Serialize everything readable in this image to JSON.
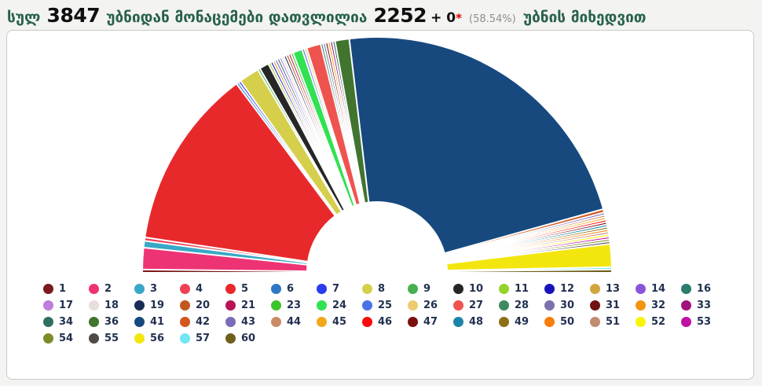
{
  "header": {
    "word_total": "სულ",
    "total_precincts": "3847",
    "phrase_counted": "უბნიდან მონაცემები დათვლილია",
    "counted_precincts": "2252",
    "plus_value": "+ 0",
    "asterisk": "*",
    "percent": "(58.54%)",
    "phrase_by_precinct": "უბნის მიხედვით"
  },
  "colors": {
    "header_green": "#27614a",
    "asterisk_red": "#dd0000",
    "percent_gray": "#8f8f8f",
    "panel_border": "#c9c9c9",
    "page_background": "#f3f3f1",
    "separator_white": "#ffffff",
    "legend_label": "#223050"
  },
  "chart_data": {
    "type": "pie",
    "shape": "semicircle-donut",
    "start_angle_deg": 180,
    "end_angle_deg": 0,
    "inner_radius_ratio": 0.3,
    "legend_position": "bottom",
    "unit": "percent of semicircle (estimated from arc lengths)",
    "segments": [
      {
        "label": "1",
        "value": 0.15,
        "color": "#7A1A1A"
      },
      {
        "label": "2",
        "value": 3.2,
        "color": "#EE3375"
      },
      {
        "label": "3",
        "value": 1.0,
        "color": "#38A8C6"
      },
      {
        "label": "4",
        "value": 0.5,
        "color": "#EF4155"
      },
      {
        "label": "5",
        "value": 26.7,
        "color": "#E8292C"
      },
      {
        "label": "6",
        "value": 0.2,
        "color": "#2E78C7"
      },
      {
        "label": "7",
        "value": 0.25,
        "color": "#2B3BF0"
      },
      {
        "label": "8",
        "value": 3.0,
        "color": "#D6CF4B"
      },
      {
        "label": "9",
        "value": 0.3,
        "color": "#47B152"
      },
      {
        "label": "10",
        "value": 1.4,
        "color": "#262626"
      },
      {
        "label": "11",
        "value": 0.15,
        "color": "#94D32C"
      },
      {
        "label": "12",
        "value": 0.3,
        "color": "#1A12B9"
      },
      {
        "label": "13",
        "value": 0.1,
        "color": "#D2A63F"
      },
      {
        "label": "14",
        "value": 0.1,
        "color": "#8C55D9"
      },
      {
        "label": "16",
        "value": 0.1,
        "color": "#2C7D6B"
      },
      {
        "label": "17",
        "value": 0.1,
        "color": "#BD7EDC"
      },
      {
        "label": "18",
        "value": 0.1,
        "color": "#E8DEDC"
      },
      {
        "label": "19",
        "value": 0.3,
        "color": "#1A2C55"
      },
      {
        "label": "20",
        "value": 0.1,
        "color": "#C2571F"
      },
      {
        "label": "21",
        "value": 0.3,
        "color": "#B81355"
      },
      {
        "label": "23",
        "value": 0.2,
        "color": "#3CC42C"
      },
      {
        "label": "24",
        "value": 1.4,
        "color": "#31E151"
      },
      {
        "label": "25",
        "value": 0.3,
        "color": "#4A72E8"
      },
      {
        "label": "26",
        "value": 0.1,
        "color": "#EECB70"
      },
      {
        "label": "27",
        "value": 2.1,
        "color": "#EF5350"
      },
      {
        "label": "28",
        "value": 0.15,
        "color": "#3E8A60"
      },
      {
        "label": "30",
        "value": 0.1,
        "color": "#7B72AD"
      },
      {
        "label": "31",
        "value": 0.1,
        "color": "#701312"
      },
      {
        "label": "32",
        "value": 0.1,
        "color": "#F0960F"
      },
      {
        "label": "33",
        "value": 0.1,
        "color": "#A2127F"
      },
      {
        "label": "34",
        "value": 0.1,
        "color": "#2F6F63"
      },
      {
        "label": "36",
        "value": 2.1,
        "color": "#41742F"
      },
      {
        "label": "41",
        "value": 48.5,
        "color": "#17497F"
      },
      {
        "label": "42",
        "value": 0.5,
        "color": "#D2571C"
      },
      {
        "label": "43",
        "value": 0.1,
        "color": "#7D6BB8"
      },
      {
        "label": "44",
        "value": 0.3,
        "color": "#C98C66"
      },
      {
        "label": "45",
        "value": 0.2,
        "color": "#F4A71D"
      },
      {
        "label": "46",
        "value": 0.25,
        "color": "#FA0A0A"
      },
      {
        "label": "47",
        "value": 0.2,
        "color": "#7A100E"
      },
      {
        "label": "48",
        "value": 0.1,
        "color": "#1C84A8"
      },
      {
        "label": "49",
        "value": 0.1,
        "color": "#8F6E14"
      },
      {
        "label": "50",
        "value": 0.2,
        "color": "#FA7D09"
      },
      {
        "label": "51",
        "value": 0.2,
        "color": "#C28B72"
      },
      {
        "label": "52",
        "value": 0.15,
        "color": "#F8F507"
      },
      {
        "label": "53",
        "value": 0.1,
        "color": "#C011A5"
      },
      {
        "label": "54",
        "value": 0.1,
        "color": "#7E8C27"
      },
      {
        "label": "55",
        "value": 0.25,
        "color": "#4D4A47"
      },
      {
        "label": "56",
        "value": 3.4,
        "color": "#F2E60E"
      },
      {
        "label": "57",
        "value": 0.08,
        "color": "#72E6F2"
      },
      {
        "label": "60",
        "value": 0.08,
        "color": "#6E5F1C"
      }
    ]
  }
}
